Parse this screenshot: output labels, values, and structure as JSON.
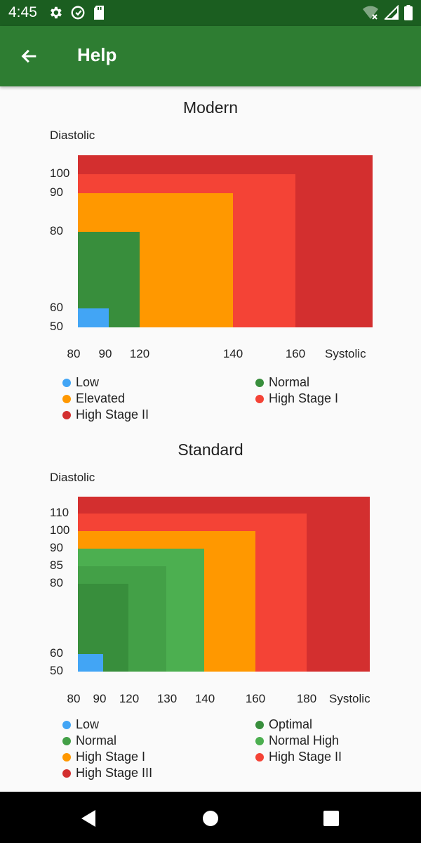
{
  "status_bar": {
    "time": "4:45",
    "left_icons": [
      "gear-icon",
      "sync-icon",
      "sd-card-icon"
    ],
    "right_icons": [
      "wifi-off-icon",
      "signal-icon",
      "battery-icon"
    ]
  },
  "app_bar": {
    "title": "Help",
    "background": "#2e7d32"
  },
  "sections": {
    "modern": {
      "title": "Modern"
    },
    "standard": {
      "title": "Standard"
    }
  },
  "chart_data": [
    {
      "type": "area",
      "title": "Modern",
      "xlabel": "Systolic",
      "ylabel": "Diastolic",
      "x_ticks": [
        "80",
        "90",
        "120",
        "140",
        "160"
      ],
      "y_ticks": [
        "100",
        "90",
        "80",
        "60",
        "50"
      ],
      "xlim": [
        80,
        175
      ],
      "ylim": [
        50,
        105
      ],
      "legend_position": "bottom",
      "series": [
        {
          "name": "High Stage II",
          "color": "#d32f2f",
          "x_max": 175,
          "y_max": 105
        },
        {
          "name": "High Stage I",
          "color": "#f44336",
          "x_max": 160,
          "y_max": 100
        },
        {
          "name": "Elevated",
          "color": "#ff9800",
          "x_max": 140,
          "y_max": 90
        },
        {
          "name": "Normal",
          "color": "#388e3c",
          "x_max": 100,
          "y_max": 80
        },
        {
          "name": "Low",
          "color": "#42a5f5",
          "x_max": 90,
          "y_max": 55
        }
      ],
      "legend": [
        {
          "label": "Low",
          "color": "#42a5f5"
        },
        {
          "label": "Normal",
          "color": "#388e3c"
        },
        {
          "label": "Elevated",
          "color": "#ff9800"
        },
        {
          "label": "High Stage I",
          "color": "#f44336"
        },
        {
          "label": "High Stage II",
          "color": "#d32f2f"
        }
      ]
    },
    {
      "type": "area",
      "title": "Standard",
      "xlabel": "Systolic",
      "ylabel": "Diastolic",
      "x_ticks": [
        "80",
        "90",
        "120",
        "130",
        "140",
        "160",
        "180"
      ],
      "y_ticks": [
        "110",
        "100",
        "90",
        "85",
        "80",
        "60",
        "50"
      ],
      "xlim": [
        80,
        205
      ],
      "ylim": [
        50,
        115
      ],
      "legend_position": "bottom",
      "series": [
        {
          "name": "High Stage III",
          "color": "#d32f2f",
          "x_max": 205,
          "y_max": 115
        },
        {
          "name": "High Stage II",
          "color": "#f44336",
          "x_max": 180,
          "y_max": 110
        },
        {
          "name": "High Stage I",
          "color": "#ff9800",
          "x_max": 160,
          "y_max": 100
        },
        {
          "name": "Normal High",
          "color": "#4caf50",
          "x_max": 140,
          "y_max": 90
        },
        {
          "name": "Normal",
          "color": "#43a047",
          "x_max": 130,
          "y_max": 85
        },
        {
          "name": "Optimal",
          "color": "#388e3c",
          "x_max": 120,
          "y_max": 80
        },
        {
          "name": "Low",
          "color": "#42a5f5",
          "x_max": 90,
          "y_max": 55
        }
      ],
      "legend": [
        {
          "label": "Low",
          "color": "#42a5f5"
        },
        {
          "label": "Optimal",
          "color": "#388e3c"
        },
        {
          "label": "Normal",
          "color": "#43a047"
        },
        {
          "label": "Normal High",
          "color": "#4caf50"
        },
        {
          "label": "High Stage I",
          "color": "#ff9800"
        },
        {
          "label": "High Stage II",
          "color": "#f44336"
        },
        {
          "label": "High Stage III",
          "color": "#d32f2f"
        }
      ]
    }
  ],
  "nav_bar": {
    "buttons": [
      "back-triangle-icon",
      "home-circle-icon",
      "recents-square-icon"
    ]
  }
}
